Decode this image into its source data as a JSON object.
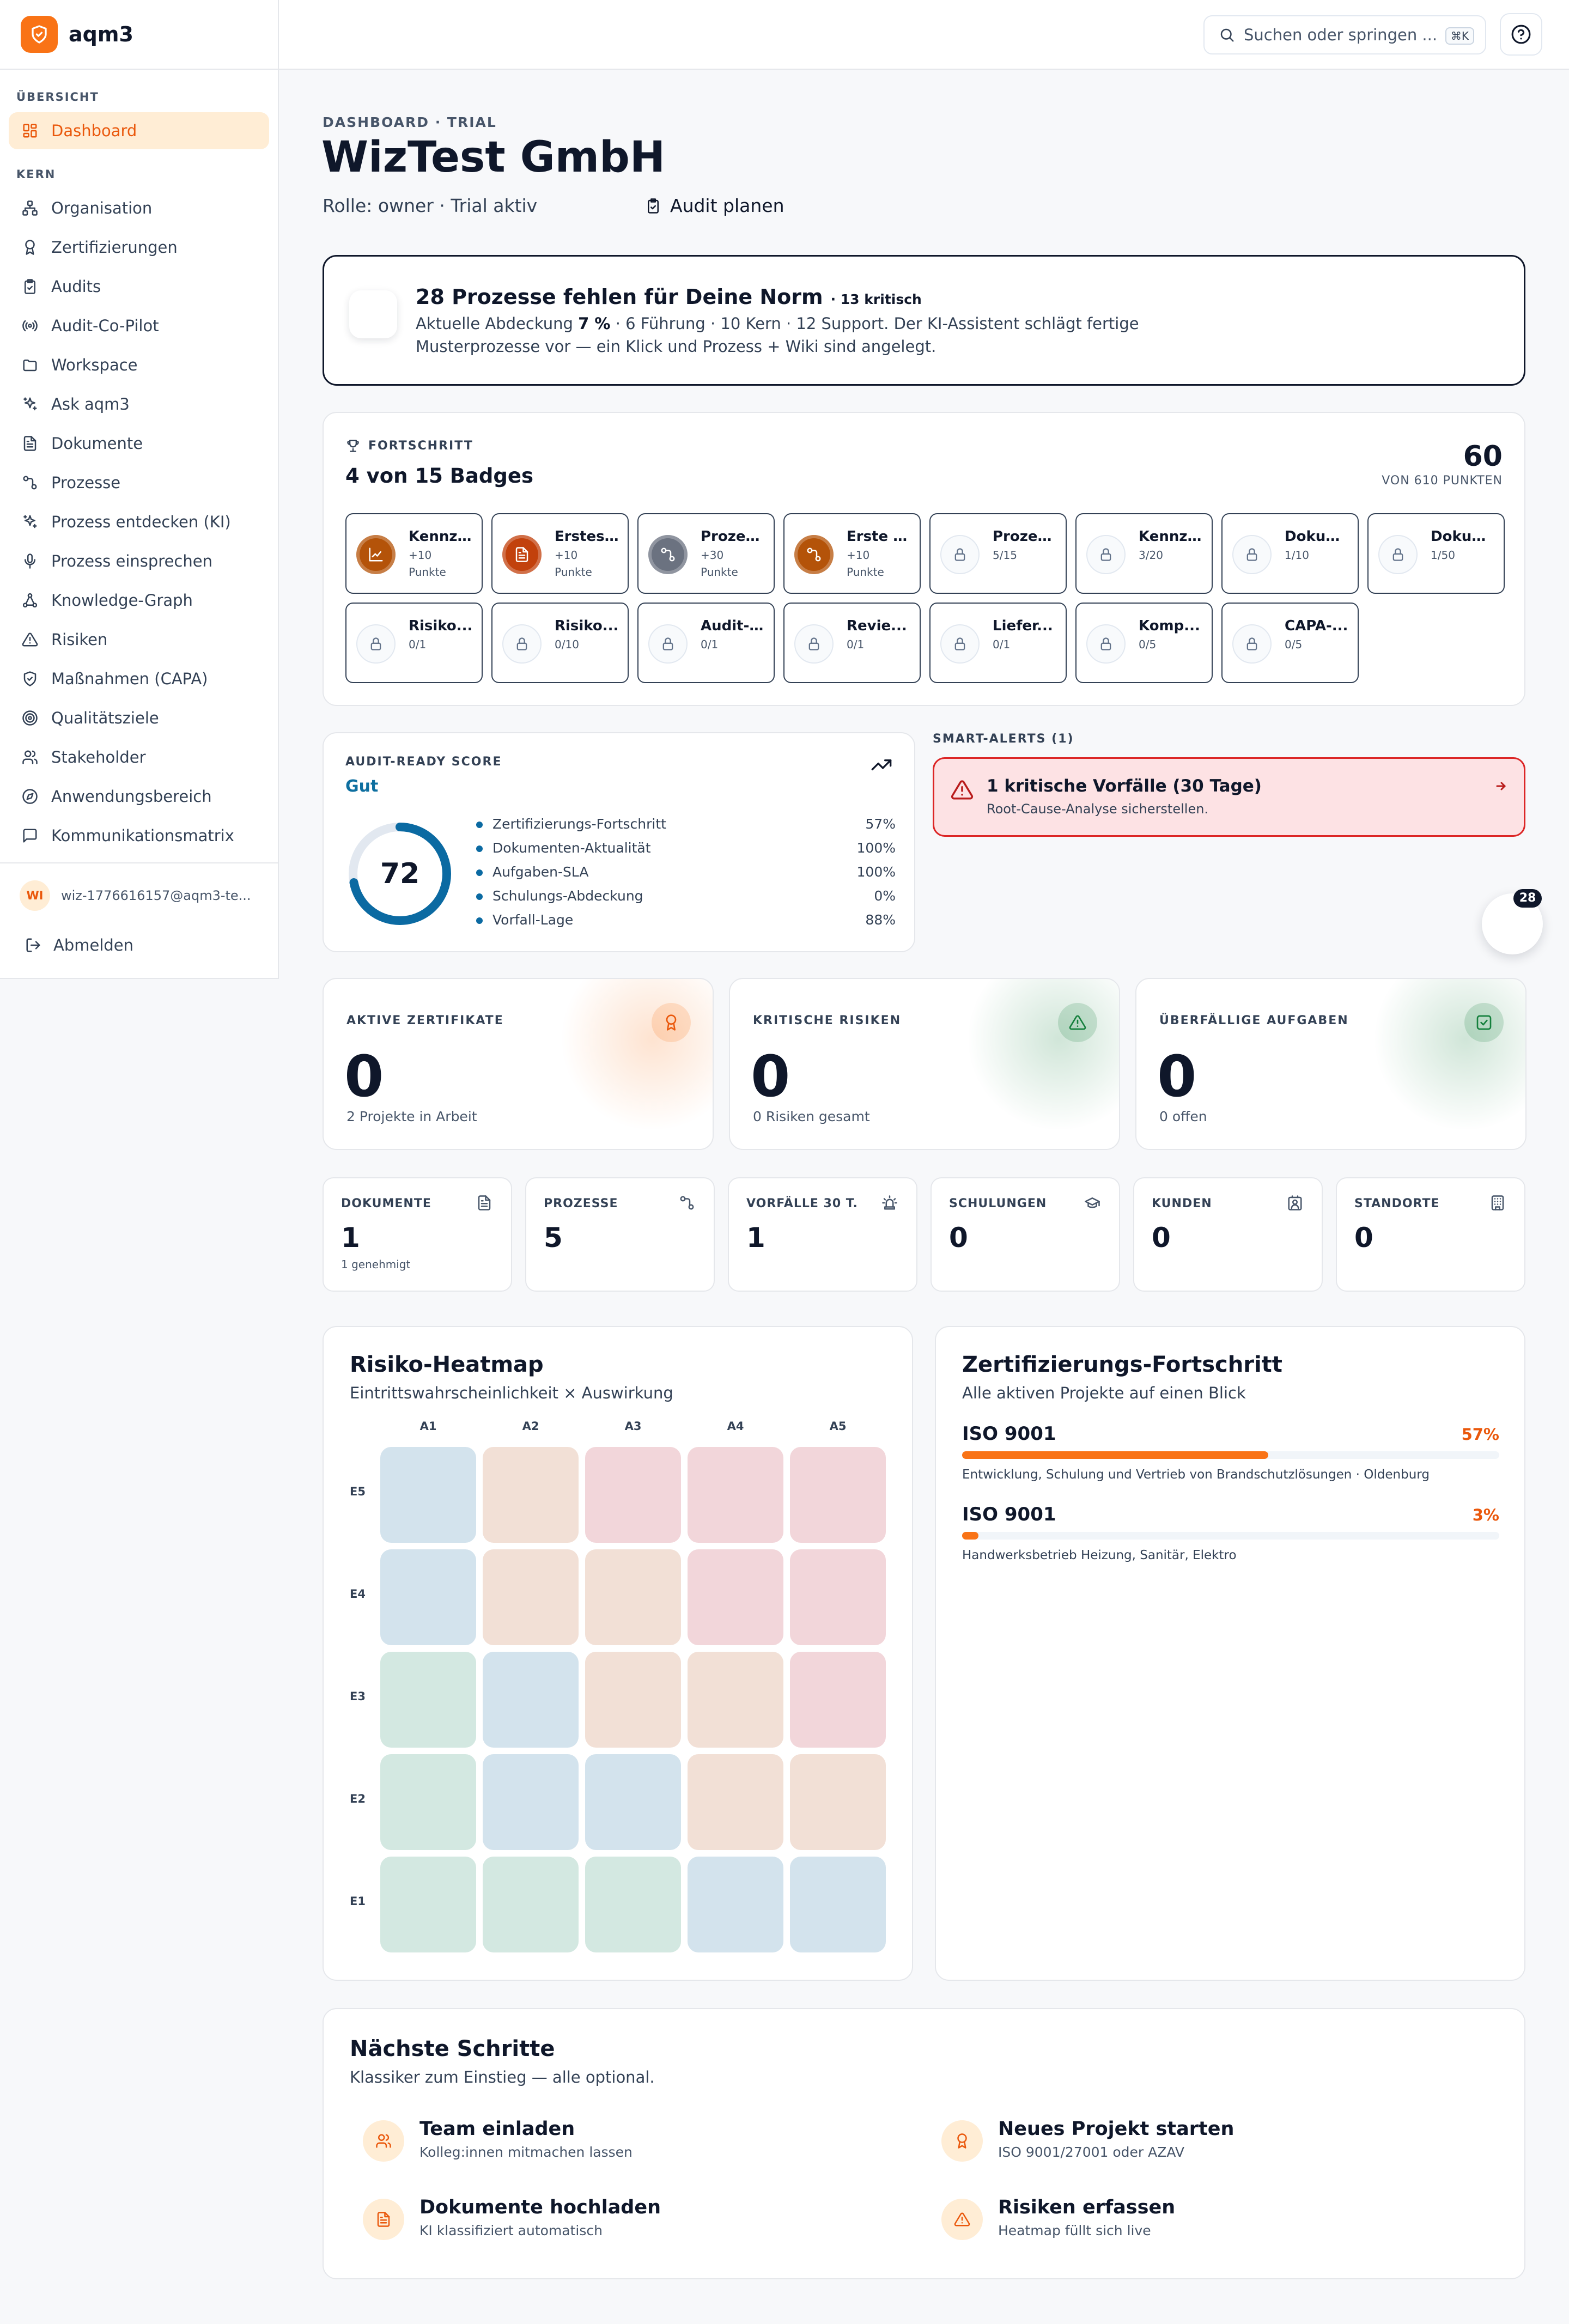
{
  "brand": {
    "name": "aqm3"
  },
  "sidebar": {
    "section_overview": "ÜBERSICHT",
    "section_core": "KERN",
    "items": [
      {
        "label": "Dashboard",
        "icon": "dashboard-icon"
      },
      {
        "label": "Organisation",
        "icon": "org-icon"
      },
      {
        "label": "Zertifizierungen",
        "icon": "award-icon"
      },
      {
        "label": "Audits",
        "icon": "clipboard-icon"
      },
      {
        "label": "Audit-Co-Pilot",
        "icon": "radio-icon"
      },
      {
        "label": "Workspace",
        "icon": "folder-icon"
      },
      {
        "label": "Ask aqm3",
        "icon": "sparkles-icon"
      },
      {
        "label": "Dokumente",
        "icon": "document-icon"
      },
      {
        "label": "Prozesse",
        "icon": "process-icon"
      },
      {
        "label": "Prozess entdecken (KI)",
        "icon": "sparkles-icon"
      },
      {
        "label": "Prozess einsprechen",
        "icon": "mic-icon"
      },
      {
        "label": "Knowledge-Graph",
        "icon": "graph-icon"
      },
      {
        "label": "Risiken",
        "icon": "warning-icon"
      },
      {
        "label": "Maßnahmen (CAPA)",
        "icon": "shield-icon"
      },
      {
        "label": "Qualitätsziele",
        "icon": "target-icon"
      },
      {
        "label": "Stakeholder",
        "icon": "users-icon"
      },
      {
        "label": "Anwendungsbereich",
        "icon": "compass-icon"
      },
      {
        "label": "Kommunikationsmatrix",
        "icon": "chat-icon"
      }
    ],
    "user": {
      "initials": "WI",
      "email": "wiz-1776616157@aqm3-te..."
    },
    "logout": "Abmelden"
  },
  "topbar": {
    "search_placeholder": "Suchen oder springen ...",
    "shortcut": "⌘K"
  },
  "header": {
    "eyebrow": "DASHBOARD · TRIAL",
    "title": "WizTest GmbH",
    "role": "Rolle: owner · Trial aktiv",
    "audit_button": "Audit planen"
  },
  "banner": {
    "title": "28 Prozesse fehlen für Deine Norm",
    "critical": "· 13 kritisch",
    "line1_pre": "Aktuelle Abdeckung ",
    "line1_bold": "7 %",
    "line1_post": " · 6 Führung · 10 Kern · 12 Support. Der KI-Assistent schlägt fertige",
    "line2": "Musterprozesse vor — ein Klick und Prozess + Wiki sind angelegt."
  },
  "progress": {
    "label": "FORTSCHRITT",
    "title": "4 von 15 Badges",
    "points": "60",
    "points_of": "VON 610 PUNKTEN",
    "badges": [
      {
        "title": "Kennzahlen",
        "line1": "+10",
        "line2": "Punkte",
        "earned": true,
        "color": "#b45309",
        "icon": "chart-icon"
      },
      {
        "title": "Erstes Dokument",
        "line1": "+10",
        "line2": "Punkte",
        "earned": true,
        "color": "#c2410c",
        "icon": "document-icon"
      },
      {
        "title": "Prozesse",
        "line1": "+30",
        "line2": "Punkte",
        "earned": true,
        "color": "#6b7280",
        "icon": "process-icon"
      },
      {
        "title": "Erste Prozesse",
        "line1": "+10",
        "line2": "Punkte",
        "earned": true,
        "color": "#b45309",
        "icon": "process-icon"
      },
      {
        "title": "Prozesse",
        "line1": "5/15",
        "line2": "",
        "earned": false
      },
      {
        "title": "Kennzahlen",
        "line1": "3/20",
        "line2": "",
        "earned": false
      },
      {
        "title": "Dokumente",
        "line1": "1/10",
        "line2": "",
        "earned": false
      },
      {
        "title": "Dokumente",
        "line1": "1/50",
        "line2": "",
        "earned": false
      },
      {
        "title": "Risiko...",
        "line1": "0/1",
        "line2": "",
        "earned": false
      },
      {
        "title": "Risiko...",
        "line1": "0/10",
        "line2": "",
        "earned": false
      },
      {
        "title": "Audit-...",
        "line1": "0/1",
        "line2": "",
        "earned": false
      },
      {
        "title": "Revie...",
        "line1": "0/1",
        "line2": "",
        "earned": false
      },
      {
        "title": "Liefer...",
        "line1": "0/1",
        "line2": "",
        "earned": false
      },
      {
        "title": "Komp...",
        "line1": "0/5",
        "line2": "",
        "earned": false
      },
      {
        "title": "CAPA-...",
        "line1": "0/5",
        "line2": "",
        "earned": false
      }
    ]
  },
  "audit_score": {
    "label": "AUDIT-READY SCORE",
    "rating": "Gut",
    "score": "72",
    "score_fraction": 0.72,
    "factors": [
      {
        "name": "Zertifizierungs-Fortschritt",
        "value": "57%"
      },
      {
        "name": "Dokumenten-Aktualität",
        "value": "100%"
      },
      {
        "name": "Aufgaben-SLA",
        "value": "100%"
      },
      {
        "name": "Schulungs-Abdeckung",
        "value": "0%"
      },
      {
        "name": "Vorfall-Lage",
        "value": "88%"
      }
    ]
  },
  "alerts": {
    "label": "SMART-ALERTS (1)",
    "items": [
      {
        "title": "1 kritische Vorfälle (30 Tage)",
        "subtitle": "Root-Cause-Analyse sicherstellen."
      }
    ]
  },
  "float_badge": "28",
  "kpis": [
    {
      "label": "AKTIVE ZERTIFIKATE",
      "value": "0",
      "sub": "2 Projekte in Arbeit",
      "icon": "award-icon",
      "tint": "#f97316"
    },
    {
      "label": "KRITISCHE RISIKEN",
      "value": "0",
      "sub": "0 Risiken gesamt",
      "icon": "warning-icon",
      "tint": "#15803d"
    },
    {
      "label": "ÜBERFÄLLIGE AUFGABEN",
      "value": "0",
      "sub": "0 offen",
      "icon": "checkbox-icon",
      "tint": "#15803d"
    }
  ],
  "stats": [
    {
      "label": "DOKUMENTE",
      "value": "1",
      "sub": "1 genehmigt",
      "icon": "document-icon"
    },
    {
      "label": "PROZESSE",
      "value": "5",
      "sub": "",
      "icon": "process-icon"
    },
    {
      "label": "VORFÄLLE 30 T.",
      "value": "1",
      "sub": "",
      "icon": "siren-icon"
    },
    {
      "label": "SCHULUNGEN",
      "value": "0",
      "sub": "",
      "icon": "graduation-icon"
    },
    {
      "label": "KUNDEN",
      "value": "0",
      "sub": "",
      "icon": "contact-icon"
    },
    {
      "label": "STANDORTE",
      "value": "0",
      "sub": "",
      "icon": "building-icon"
    }
  ],
  "heatmap": {
    "title": "Risiko-Heatmap",
    "subtitle": "Eintrittswahrscheinlichkeit × Auswirkung",
    "cols": [
      "A1",
      "A2",
      "A3",
      "A4",
      "A5"
    ],
    "rows": [
      "E5",
      "E4",
      "E3",
      "E2",
      "E1"
    ],
    "levels": [
      [
        "blue",
        "orange",
        "red",
        "red",
        "red"
      ],
      [
        "blue",
        "orange",
        "orange",
        "red",
        "red"
      ],
      [
        "green",
        "blue",
        "orange",
        "orange",
        "red"
      ],
      [
        "green",
        "blue",
        "blue",
        "orange",
        "orange"
      ],
      [
        "green",
        "green",
        "green",
        "blue",
        "blue"
      ]
    ],
    "colors": {
      "green": "#d3e8e1",
      "blue": "#d3e3ed",
      "orange": "#f2e0d6",
      "red": "#f2d6da"
    }
  },
  "cert_progress": {
    "title": "Zertifizierungs-Fortschritt",
    "subtitle": "Alle aktiven Projekte auf einen Blick",
    "projects": [
      {
        "name": "ISO 9001",
        "percent": "57%",
        "fraction": 0.57,
        "desc": "Entwicklung, Schulung und Vertrieb von Brandschutzlösungen · Oldenburg"
      },
      {
        "name": "ISO 9001",
        "percent": "3%",
        "fraction": 0.03,
        "desc": "Handwerksbetrieb Heizung, Sanitär, Elektro"
      }
    ]
  },
  "next_steps": {
    "title": "Nächste Schritte",
    "subtitle": "Klassiker zum Einstieg — alle optional.",
    "items": [
      {
        "title": "Team einladen",
        "desc": "Kolleg:innen mitmachen lassen",
        "icon": "users-icon"
      },
      {
        "title": "Neues Projekt starten",
        "desc": "ISO 9001/27001 oder AZAV",
        "icon": "award-icon"
      },
      {
        "title": "Dokumente hochladen",
        "desc": "KI klassifiziert automatisch",
        "icon": "document-icon"
      },
      {
        "title": "Risiken erfassen",
        "desc": "Heatmap füllt sich live",
        "icon": "warning-icon"
      }
    ]
  }
}
